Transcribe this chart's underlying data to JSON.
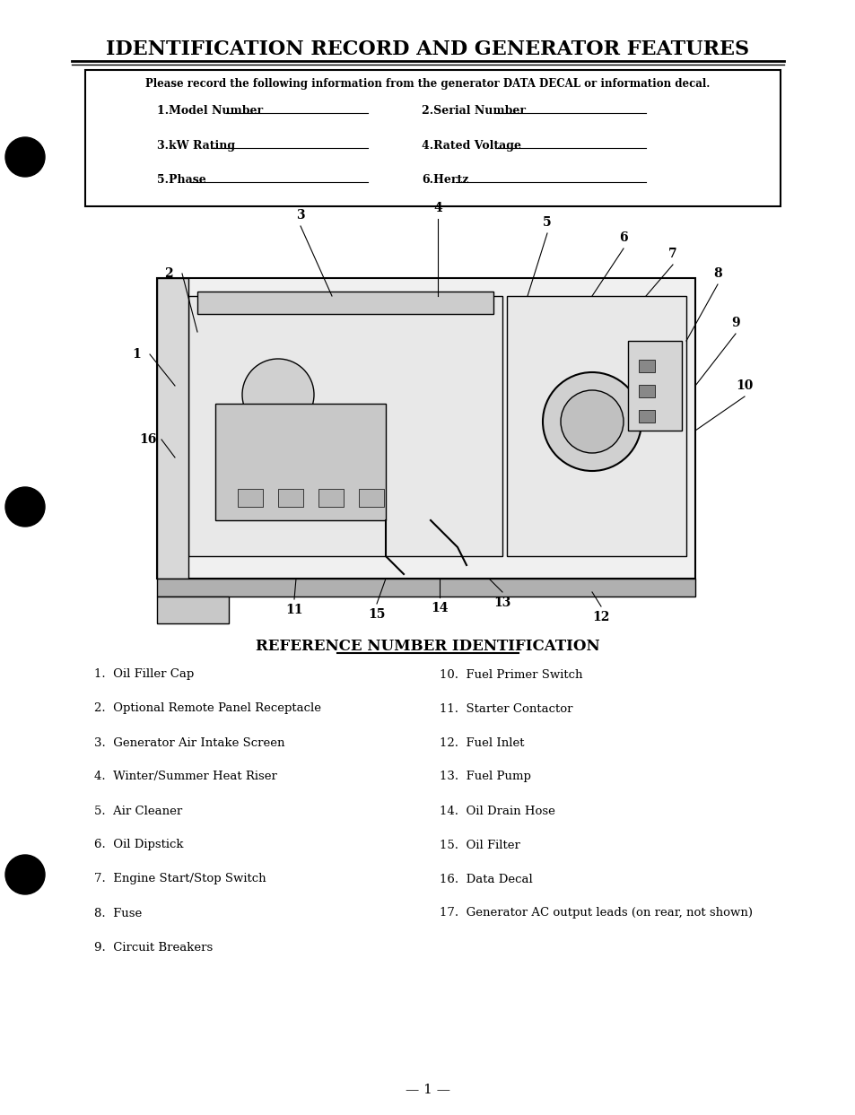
{
  "title": "IDENTIFICATION RECORD AND GENERATOR FEATURES",
  "bg_color": "#ffffff",
  "text_color": "#000000",
  "info_box_text": "Please record the following information from the generator DATA DECAL or information decal.",
  "fields": [
    [
      "1.Model Number",
      "2.Serial Number"
    ],
    [
      "3.kW Rating",
      "4.Rated Voltage"
    ],
    [
      "5.Phase",
      "6.Hertz"
    ]
  ],
  "ref_title": "REFERENCE NUMBER IDENTIFICATION",
  "left_items": [
    "1.  Oil Filler Cap",
    "2.  Optional Remote Panel Receptacle",
    "3.  Generator Air Intake Screen",
    "4.  Winter/Summer Heat Riser",
    "5.  Air Cleaner",
    "6.  Oil Dipstick",
    "7.  Engine Start/Stop Switch",
    "8.  Fuse",
    "9.  Circuit Breakers"
  ],
  "right_items": [
    "10.  Fuel Primer Switch",
    "11.  Starter Contactor",
    "12.  Fuel Inlet",
    "13.  Fuel Pump",
    "14.  Oil Drain Hose",
    "15.  Oil Filter",
    "16.  Data Decal",
    "17.  Generator AC output leads (on rear, not shown)"
  ],
  "page_number": "— 1 —",
  "diagram_numbers_left": [
    "2",
    "1",
    "16",
    "11"
  ],
  "diagram_numbers_top": [
    "3",
    "4",
    "5",
    "6",
    "7",
    "8",
    "9",
    "10"
  ],
  "diagram_numbers_bottom": [
    "15",
    "14",
    "13",
    "12"
  ]
}
